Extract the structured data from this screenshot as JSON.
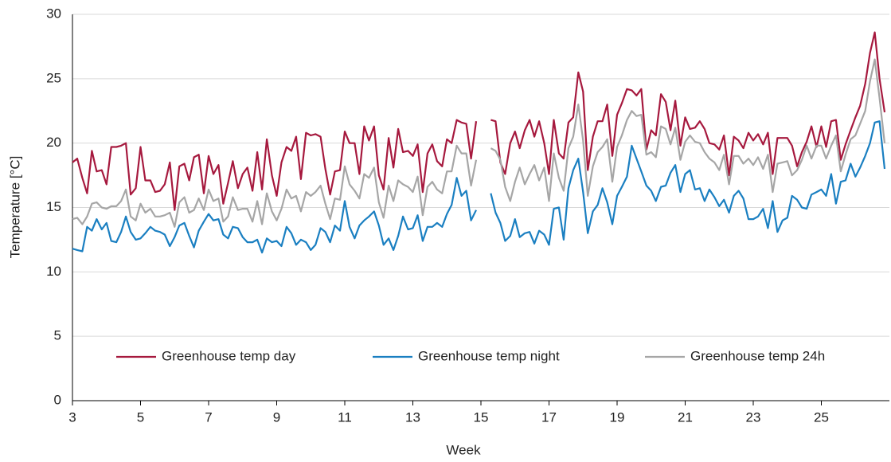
{
  "chart_data": {
    "type": "line",
    "x_label": "Week",
    "y_label": "Temperature [°C]",
    "xlim": [
      3,
      27
    ],
    "xticks": [
      3,
      5,
      7,
      9,
      11,
      13,
      15,
      17,
      19,
      21,
      23,
      25
    ],
    "ylim": [
      0,
      30
    ],
    "yticks": [
      0,
      5,
      10,
      15,
      20,
      25,
      30
    ],
    "grid": true,
    "legend": "bottom",
    "x": [
      3,
      3.14,
      3.29,
      3.43,
      3.57,
      3.71,
      3.86,
      4,
      4.14,
      4.29,
      4.43,
      4.57,
      4.71,
      4.86,
      5,
      5.14,
      5.29,
      5.43,
      5.57,
      5.71,
      5.86,
      6,
      6.14,
      6.29,
      6.43,
      6.57,
      6.71,
      6.86,
      7,
      7.14,
      7.29,
      7.43,
      7.57,
      7.71,
      7.86,
      8,
      8.14,
      8.29,
      8.43,
      8.57,
      8.71,
      8.86,
      9,
      9.14,
      9.29,
      9.43,
      9.57,
      9.71,
      9.86,
      10,
      10.14,
      10.29,
      10.43,
      10.57,
      10.71,
      10.86,
      11,
      11.14,
      11.29,
      11.43,
      11.57,
      11.71,
      11.86,
      12,
      12.14,
      12.29,
      12.43,
      12.57,
      12.71,
      12.86,
      13,
      13.14,
      13.29,
      13.43,
      13.57,
      13.71,
      13.86,
      14,
      14.14,
      14.29,
      14.43,
      14.57,
      14.71,
      14.86,
      15,
      15.14,
      15.29,
      15.43,
      15.57,
      15.71,
      15.86,
      16,
      16.14,
      16.29,
      16.43,
      16.57,
      16.71,
      16.86,
      17,
      17.14,
      17.29,
      17.43,
      17.57,
      17.71,
      17.86,
      18,
      18.14,
      18.29,
      18.43,
      18.57,
      18.71,
      18.86,
      19,
      19.14,
      19.29,
      19.43,
      19.57,
      19.71,
      19.86,
      20,
      20.14,
      20.29,
      20.43,
      20.57,
      20.71,
      20.86,
      21,
      21.14,
      21.29,
      21.43,
      21.57,
      21.71,
      21.86,
      22,
      22.14,
      22.29,
      22.43,
      22.57,
      22.71,
      22.86,
      23,
      23.14,
      23.29,
      23.43,
      23.57,
      23.71,
      23.86,
      24,
      24.14,
      24.29,
      24.43,
      24.57,
      24.71,
      24.86,
      25,
      25.14,
      25.29,
      25.43,
      25.57,
      25.71,
      25.86,
      26,
      26.14,
      26.29,
      26.43,
      26.57,
      26.71,
      26.86
    ],
    "series": [
      {
        "name": "Greenhouse temp day",
        "color": "#a6193e",
        "values": [
          18.5,
          18.8,
          17.3,
          16.1,
          19.4,
          17.8,
          17.9,
          16.8,
          19.7,
          19.7,
          19.8,
          20.0,
          16.0,
          16.5,
          19.7,
          17.1,
          17.1,
          16.2,
          16.3,
          16.8,
          18.5,
          14.8,
          18.2,
          18.4,
          17.1,
          18.9,
          19.1,
          16.1,
          19.0,
          17.6,
          18.3,
          15.3,
          16.9,
          18.6,
          16.5,
          17.6,
          18.1,
          16.3,
          19.3,
          16.4,
          20.3,
          17.5,
          15.9,
          18.5,
          19.7,
          19.4,
          20.5,
          17.2,
          20.8,
          20.6,
          20.7,
          20.5,
          18.0,
          16.0,
          17.8,
          17.9,
          20.9,
          20.0,
          20.0,
          17.6,
          21.3,
          20.2,
          21.3,
          17.5,
          16.4,
          20.4,
          18.1,
          21.1,
          19.3,
          19.4,
          19.0,
          19.9,
          16.2,
          19.2,
          19.9,
          18.6,
          18.2,
          20.3,
          20.0,
          21.8,
          21.6,
          21.5,
          18.8,
          21.7,
          null,
          null,
          21.8,
          21.7,
          18.5,
          17.6,
          20.0,
          20.9,
          19.6,
          21.0,
          21.8,
          20.5,
          21.7,
          20.0,
          17.6,
          21.8,
          19.2,
          18.8,
          21.6,
          22.0,
          25.5,
          24.0,
          17.9,
          20.5,
          21.7,
          21.7,
          23.0,
          19.0,
          22.2,
          23.1,
          24.2,
          24.1,
          23.7,
          24.2,
          19.5,
          21.0,
          20.6,
          23.8,
          23.2,
          21.0,
          23.3,
          19.8,
          22.0,
          21.1,
          21.2,
          21.7,
          21.1,
          20.0,
          19.9,
          19.5,
          20.6,
          17.5,
          20.5,
          20.2,
          19.6,
          20.8,
          20.2,
          20.7,
          19.9,
          20.8,
          17.6,
          20.4,
          20.4,
          20.4,
          19.8,
          18.2,
          19.3,
          20.1,
          21.3,
          19.7,
          21.3,
          19.7,
          21.7,
          21.8,
          18.7,
          19.9,
          21.0,
          22.0,
          22.9,
          24.6,
          27.0,
          28.6,
          25.0,
          22.4
        ]
      },
      {
        "name": "Greenhouse temp night",
        "color": "#1a7fc1",
        "values": [
          11.8,
          11.7,
          11.6,
          13.5,
          13.2,
          14.1,
          13.3,
          13.8,
          12.4,
          12.3,
          13.1,
          14.3,
          13.1,
          12.5,
          12.6,
          13.0,
          13.5,
          13.2,
          13.1,
          12.9,
          12.0,
          12.7,
          13.6,
          13.8,
          12.8,
          11.9,
          13.2,
          13.9,
          14.5,
          14.0,
          14.1,
          12.9,
          12.6,
          13.5,
          13.4,
          12.7,
          12.3,
          12.3,
          12.5,
          11.5,
          12.6,
          12.3,
          12.4,
          12.0,
          13.5,
          13.0,
          12.1,
          12.5,
          12.3,
          11.7,
          12.1,
          13.4,
          13.1,
          12.3,
          13.6,
          13.2,
          15.5,
          13.5,
          12.6,
          13.6,
          14.0,
          14.3,
          14.7,
          13.6,
          12.1,
          12.6,
          11.7,
          12.8,
          14.3,
          13.3,
          13.4,
          14.4,
          12.4,
          13.5,
          13.5,
          13.8,
          13.5,
          14.5,
          15.2,
          17.3,
          15.9,
          16.3,
          14.0,
          14.8,
          null,
          null,
          16.1,
          14.6,
          13.8,
          12.4,
          12.8,
          14.1,
          12.7,
          13.0,
          13.1,
          12.2,
          13.2,
          12.9,
          12.1,
          14.9,
          15.0,
          12.5,
          16.5,
          17.9,
          18.8,
          16.2,
          13.0,
          14.7,
          15.2,
          16.5,
          15.4,
          13.7,
          15.9,
          16.6,
          17.4,
          19.8,
          18.8,
          17.8,
          16.7,
          16.3,
          15.5,
          16.6,
          16.7,
          17.7,
          18.3,
          16.2,
          17.6,
          17.9,
          16.4,
          16.5,
          15.5,
          16.4,
          15.8,
          15.1,
          15.6,
          14.6,
          15.9,
          16.3,
          15.7,
          14.1,
          14.1,
          14.3,
          14.9,
          13.4,
          15.5,
          13.1,
          14.0,
          14.2,
          15.9,
          15.6,
          15.0,
          14.9,
          16.0,
          16.2,
          16.4,
          15.9,
          17.6,
          15.3,
          17.0,
          17.1,
          18.4,
          17.4,
          18.1,
          19.0,
          20.0,
          21.6,
          21.7,
          18.0
        ]
      },
      {
        "name": "Greenhouse temp 24h",
        "color": "#a6a6a6",
        "values": [
          14.1,
          14.2,
          13.7,
          14.3,
          15.3,
          15.4,
          15.0,
          14.9,
          15.1,
          15.1,
          15.5,
          16.4,
          14.3,
          14.0,
          15.3,
          14.6,
          14.9,
          14.3,
          14.3,
          14.4,
          14.6,
          13.5,
          15.4,
          15.8,
          14.6,
          14.8,
          15.7,
          14.8,
          16.4,
          15.5,
          15.7,
          13.9,
          14.3,
          15.8,
          14.8,
          14.9,
          14.9,
          13.9,
          15.5,
          13.7,
          16.1,
          14.7,
          14.0,
          14.9,
          16.4,
          15.7,
          15.9,
          14.7,
          16.2,
          15.9,
          16.2,
          16.7,
          15.3,
          14.1,
          15.7,
          15.6,
          18.2,
          16.8,
          16.3,
          15.7,
          17.6,
          17.3,
          18.1,
          15.4,
          14.2,
          16.7,
          15.5,
          17.1,
          16.8,
          16.6,
          16.2,
          17.4,
          14.4,
          16.6,
          17.0,
          16.4,
          16.1,
          17.8,
          17.8,
          19.8,
          19.2,
          19.2,
          16.7,
          18.7,
          null,
          null,
          19.6,
          19.4,
          18.7,
          16.6,
          15.5,
          17.0,
          18.1,
          16.8,
          17.6,
          18.3,
          17.1,
          18.1,
          15.5,
          19.2,
          17.3,
          16.3,
          19.6,
          20.5,
          23.0,
          20.2,
          15.9,
          18.2,
          19.3,
          19.7,
          20.3,
          17.0,
          19.7,
          20.6,
          21.8,
          22.5,
          22.1,
          22.2,
          19.1,
          19.3,
          18.9,
          21.3,
          21.1,
          19.9,
          21.2,
          18.7,
          20.1,
          20.6,
          20.1,
          20.0,
          19.3,
          18.8,
          18.5,
          17.9,
          19.1,
          16.8,
          19.0,
          19.0,
          18.4,
          18.8,
          18.3,
          18.9,
          18.0,
          19.1,
          16.2,
          18.4,
          18.5,
          18.6,
          17.5,
          17.9,
          18.7,
          19.8,
          18.8,
          19.8,
          19.8,
          18.8,
          19.8,
          20.6,
          17.8,
          19.1,
          20.3,
          20.6,
          21.5,
          22.5,
          24.8,
          26.5,
          23.5,
          20.0
        ]
      }
    ]
  }
}
